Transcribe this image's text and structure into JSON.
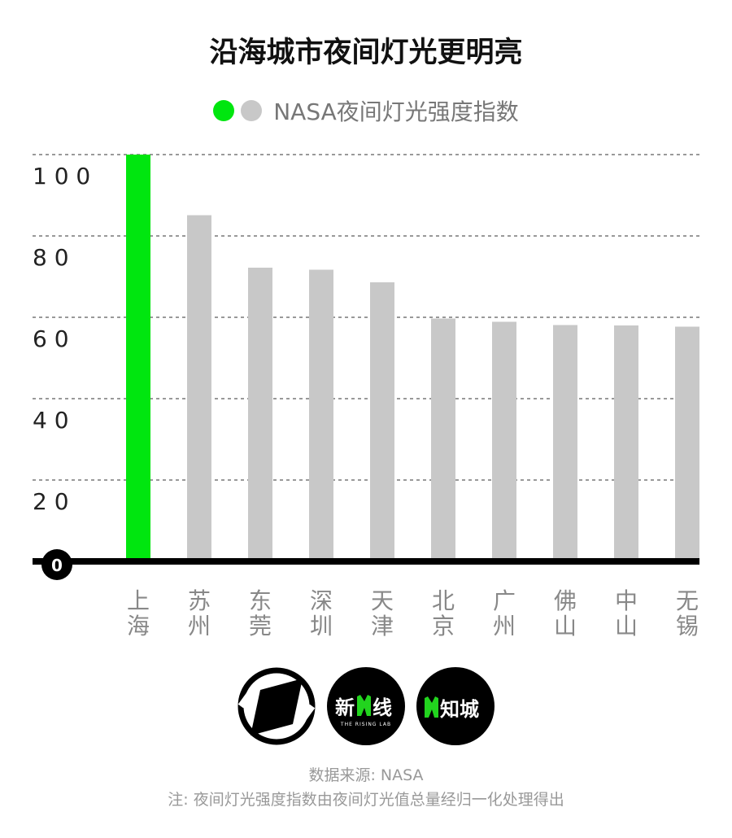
{
  "title": "沿海城市夜间灯光更明亮",
  "legend": {
    "label": "NASA夜间灯光强度指数",
    "colors": [
      "#00e60f",
      "#c8c8c8"
    ]
  },
  "chart_data": {
    "type": "bar",
    "title": "沿海城市夜间灯光更明亮",
    "categories": [
      "上海",
      "苏州",
      "东莞",
      "深圳",
      "天津",
      "北京",
      "广州",
      "佛山",
      "中山",
      "无锡"
    ],
    "series": [
      {
        "name": "NASA夜间灯光强度指数",
        "values": [
          100,
          85.1,
          72.2,
          71.7,
          68.6,
          59.7,
          58.9,
          58.1,
          58.0,
          57.7
        ]
      }
    ],
    "highlight_index": 0,
    "highlight_color": "#00e60f",
    "bar_color": "#c8c8c8",
    "ylim": [
      0,
      100
    ],
    "yticks": [
      0,
      20,
      40,
      60,
      80,
      100
    ],
    "ytick_labels": [
      "0",
      "2 0",
      "4 0",
      "6 0",
      "8 0",
      "1 0 0"
    ],
    "grid": true,
    "legend_position": "top-center"
  },
  "logos": [
    {
      "name": "logo-1"
    },
    {
      "name": "logo-rising-lab",
      "text": "新线",
      "subtext": "THE RISING LAB"
    },
    {
      "name": "logo-zhicheng",
      "text": "知城"
    }
  ],
  "footer": {
    "source": "数据来源: NASA",
    "note": "注: 夜间灯光强度指数由夜间灯光值总量经归一化处理得出"
  }
}
